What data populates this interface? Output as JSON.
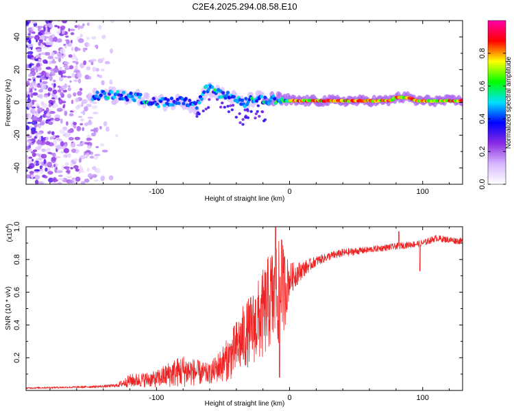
{
  "title": "C2E4.2025.294.08.58.E10",
  "chart_data": [
    {
      "type": "heatmap",
      "name": "spectrogram",
      "xlabel": "Height of straight line (km)",
      "ylabel": "Frequency (Hz)",
      "xlim": [
        -198,
        130
      ],
      "ylim": [
        -50,
        50
      ],
      "xticks": [
        -100,
        0,
        100
      ],
      "xtick_labels": [
        "-100",
        "0",
        "100"
      ],
      "yticks": [
        -40,
        -20,
        0,
        20,
        40
      ],
      "ytick_labels": [
        "-40",
        "-20",
        "0",
        "20",
        "40"
      ],
      "colorbar": {
        "label": "Normalized spectral amplitude",
        "range": [
          0,
          1
        ],
        "ticks": [
          0.0,
          0.2,
          0.4,
          0.6,
          0.8
        ],
        "tick_labels": [
          "0.0",
          "0.2",
          "0.4",
          "0.6",
          "0.8"
        ],
        "colors": [
          "#ffffff",
          "#d7b8ff",
          "#8a2be2",
          "#0000ff",
          "#00e0ff",
          "#00ff00",
          "#ffff00",
          "#ff0000",
          "#ff00aa"
        ]
      },
      "trace": {
        "x": [
          -145,
          -130,
          -115,
          -100,
          -90,
          -80,
          -70,
          -62,
          -55,
          -45,
          -35,
          -25,
          -18,
          -10,
          -5,
          0,
          20,
          50,
          75,
          80,
          90,
          95,
          100,
          130
        ],
        "y": [
          4,
          5,
          3,
          0,
          0,
          1,
          -3,
          9,
          6,
          4,
          -1,
          3,
          1,
          2,
          1,
          1,
          1,
          1,
          1,
          3,
          3,
          1,
          1,
          1
        ],
        "note": "dominant frequency ridge (Hz) vs height (km)"
      }
    },
    {
      "type": "line",
      "name": "snr",
      "xlabel": "Height of straight line (km)",
      "ylabel": "SNR (10 * v/v)",
      "y_multiplier_label": "(x10",
      "y_multiplier_exp": "4",
      "xlim": [
        -198,
        130
      ],
      "ylim": [
        0,
        1.0
      ],
      "xticks": [
        -100,
        0,
        100
      ],
      "xtick_labels": [
        "-100",
        "0",
        "100"
      ],
      "yticks": [
        0.2,
        0.4,
        0.6,
        0.8,
        1.0
      ],
      "ytick_labels": [
        "0.2",
        "0.4",
        "0.6",
        "0.8",
        "1.0"
      ],
      "color": "#ee2222",
      "envelope": {
        "x": [
          -198,
          -160,
          -140,
          -130,
          -120,
          -100,
          -90,
          -80,
          -60,
          -45,
          -35,
          -28,
          -20,
          -15,
          -10,
          -5,
          0,
          10,
          20,
          30,
          40,
          60,
          80,
          100,
          110,
          120,
          130
        ],
        "y": [
          0.015,
          0.02,
          0.025,
          0.03,
          0.06,
          0.07,
          0.1,
          0.12,
          0.1,
          0.2,
          0.32,
          0.38,
          0.46,
          0.55,
          0.58,
          0.6,
          0.68,
          0.74,
          0.79,
          0.82,
          0.84,
          0.86,
          0.88,
          0.9,
          0.93,
          0.92,
          0.91
        ],
        "noise": [
          0.005,
          0.006,
          0.008,
          0.01,
          0.04,
          0.05,
          0.08,
          0.1,
          0.06,
          0.14,
          0.2,
          0.22,
          0.28,
          0.3,
          0.34,
          0.3,
          0.1,
          0.05,
          0.03,
          0.025,
          0.025,
          0.02,
          0.02,
          0.02,
          0.02,
          0.02,
          0.02
        ]
      },
      "spikes": [
        {
          "x": -10.5,
          "y": 1.0
        },
        {
          "x": -7.5,
          "y": 0.08
        },
        {
          "x": -6,
          "y": 0.92
        },
        {
          "x": 82,
          "y": 0.97
        },
        {
          "x": 98,
          "y": 0.73
        }
      ]
    }
  ]
}
